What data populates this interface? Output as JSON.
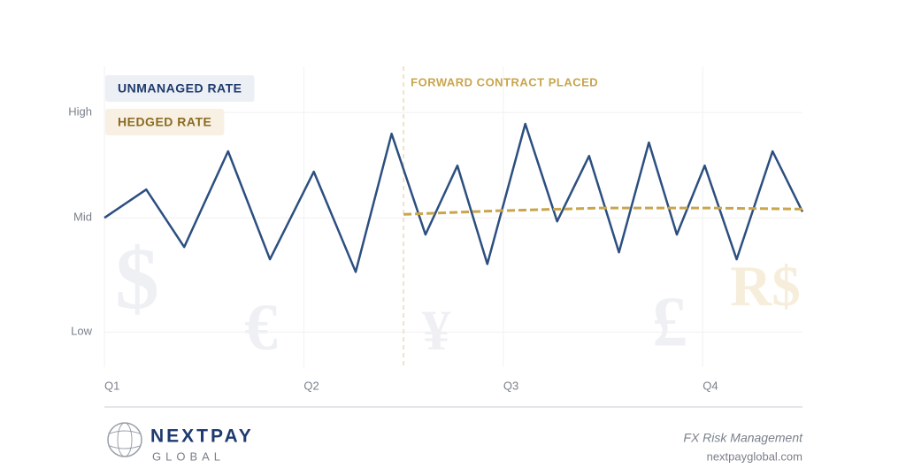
{
  "chart_data": {
    "type": "line",
    "annotation": {
      "text": "FORWARD CONTRACT PLACED",
      "x": 1.5
    },
    "xlim": [
      0,
      3.5
    ],
    "xticks": [
      {
        "value": 0,
        "label": "Q1"
      },
      {
        "value": 1,
        "label": "Q2"
      },
      {
        "value": 2,
        "label": "Q3"
      },
      {
        "value": 3,
        "label": "Q4"
      }
    ],
    "ylim": [
      -16,
      121
    ],
    "yticks": [
      {
        "value": 0,
        "label": "Low"
      },
      {
        "value": 52,
        "label": "Mid"
      },
      {
        "value": 100,
        "label": "High"
      }
    ],
    "grid": true,
    "legend": "top-left",
    "series": [
      {
        "name": "UNMANAGED RATE",
        "color": "#2c4f80",
        "style": "solid",
        "x": [
          0,
          0.21,
          0.4,
          0.62,
          0.83,
          1.05,
          1.26,
          1.44,
          1.61,
          1.77,
          1.92,
          2.11,
          2.27,
          2.43,
          2.58,
          2.73,
          2.87,
          3.01,
          3.17,
          3.35,
          3.5
        ],
        "values": [
          52.0,
          64.9,
          38.7,
          82.3,
          33.1,
          73.0,
          27.4,
          90.3,
          44.4,
          75.8,
          31.0,
          94.8,
          50.4,
          80.2,
          36.3,
          86.3,
          44.4,
          75.8,
          33.1,
          82.3,
          54.8
        ]
      },
      {
        "name": "HEDGED RATE",
        "color": "#c9a54c",
        "style": "dashed",
        "x": [
          1.5,
          1.96,
          2.49,
          3.03,
          3.5
        ],
        "values": [
          53.6,
          55.2,
          56.5,
          56.5,
          56.0
        ]
      }
    ],
    "watermarks": [
      "$",
      "€",
      "¥",
      "£",
      "R$"
    ]
  },
  "footer": {
    "brand": "NEXTPAY",
    "brand_sub": "GLOBAL",
    "tagline": "FX Risk Management",
    "url": "nextpayglobal.com"
  }
}
